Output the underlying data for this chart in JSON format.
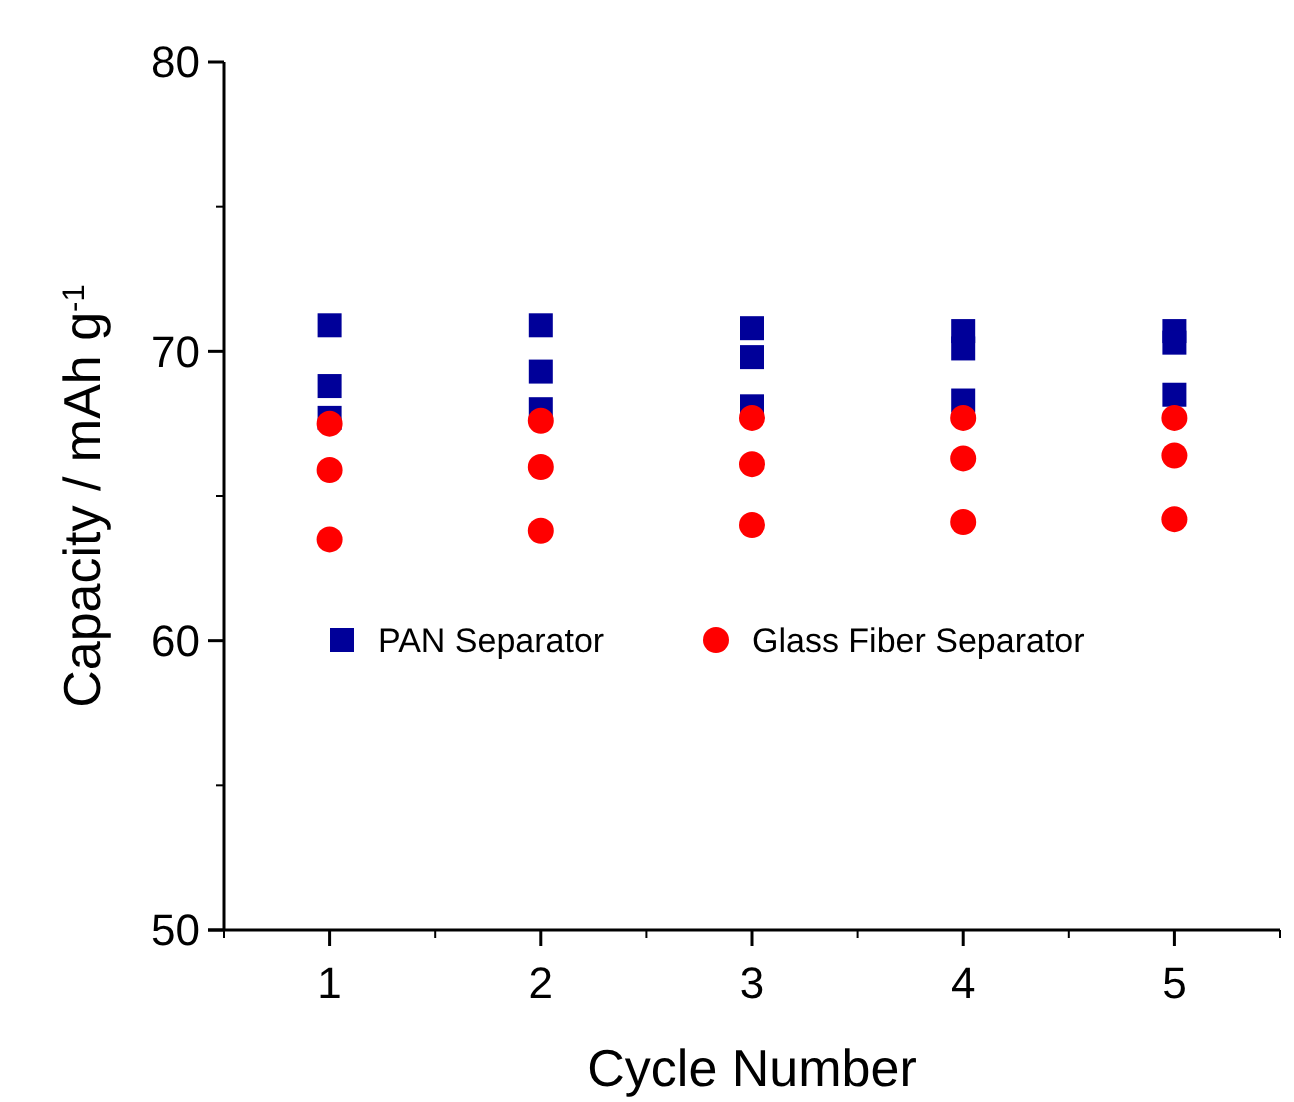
{
  "chart_data": {
    "type": "scatter",
    "xlabel": "Cycle Number",
    "ylabel": "Capacity / mAh g$^{-1}$",
    "xlim": [
      0.5,
      5.5
    ],
    "xticks": [
      1,
      2,
      3,
      4,
      5
    ],
    "ylim": [
      50,
      80
    ],
    "yticks": [
      50,
      60,
      70,
      80
    ],
    "legend": "bottom",
    "grid": false,
    "series": [
      {
        "name": "PAN Separator",
        "color": "#000099",
        "marker": "square",
        "x": [
          1,
          1,
          1,
          2,
          2,
          2,
          3,
          3,
          3,
          4,
          4,
          4,
          5,
          5,
          5
        ],
        "values": [
          70.9,
          68.8,
          67.7,
          70.9,
          69.3,
          68.0,
          70.8,
          69.8,
          68.1,
          70.7,
          70.1,
          68.3,
          70.7,
          70.3,
          68.5
        ]
      },
      {
        "name": "Glass Fiber Separator",
        "color": "#ff0000",
        "marker": "circle",
        "x": [
          1,
          1,
          1,
          2,
          2,
          2,
          3,
          3,
          3,
          4,
          4,
          4,
          5,
          5,
          5
        ],
        "values": [
          67.5,
          65.9,
          63.5,
          67.6,
          66.0,
          63.8,
          67.7,
          66.1,
          64.0,
          67.7,
          66.3,
          64.1,
          67.7,
          66.4,
          64.2
        ]
      }
    ]
  }
}
